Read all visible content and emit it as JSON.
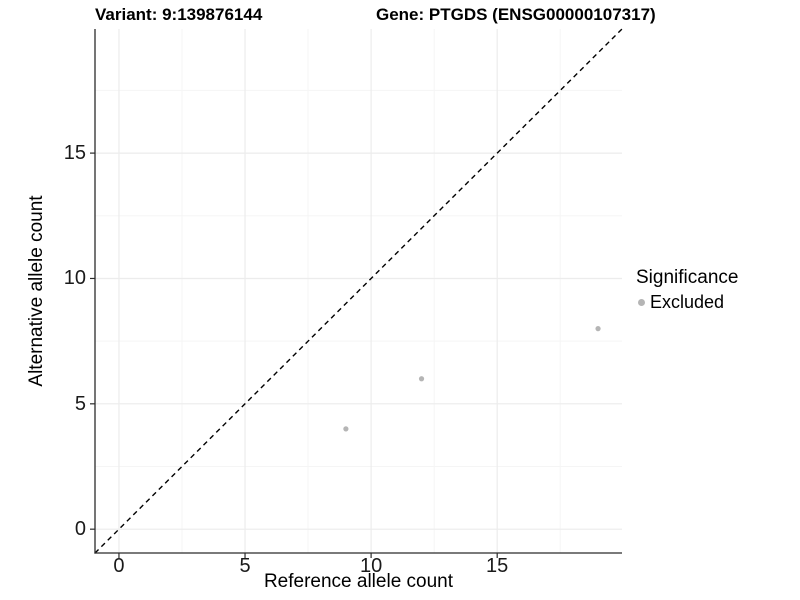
{
  "titles": {
    "variant": "Variant: 9:139876144",
    "gene": "Gene: PTGDS (ENSG00000107317)"
  },
  "legend": {
    "title": "Significance",
    "items": [
      {
        "label": "Excluded",
        "color": "#b5b5b5"
      }
    ]
  },
  "colors": {
    "point": "#b5b5b5",
    "identity_line": "#000000",
    "grid_major": "#ececec",
    "grid_minor": "#f5f5f5",
    "axis_line": "#2b2b2b",
    "tick_mark": "#2b2b2b",
    "text": "#000000",
    "background": "#ffffff"
  },
  "chart_data": {
    "type": "scatter",
    "title": "Variant: 9:139876144  /  Gene: PTGDS (ENSG00000107317)",
    "xlabel": "Reference allele count",
    "ylabel": "Alternative allele count",
    "xlim": [
      -0.95,
      19.95
    ],
    "ylim": [
      -0.95,
      19.95
    ],
    "x_ticks": [
      0,
      5,
      10,
      15
    ],
    "y_ticks": [
      0,
      5,
      10,
      15
    ],
    "x_minor_ticks": [
      2.5,
      7.5,
      12.5,
      17.5
    ],
    "y_minor_ticks": [
      2.5,
      7.5,
      12.5,
      17.5
    ],
    "grid": true,
    "legend_position": "right",
    "series": [
      {
        "name": "Excluded",
        "color": "#b5b5b5",
        "points": [
          [
            9,
            4
          ],
          [
            12,
            6
          ],
          [
            19,
            8
          ]
        ]
      }
    ],
    "reference_line": {
      "type": "identity",
      "style": "dashed",
      "color": "#000000"
    }
  }
}
